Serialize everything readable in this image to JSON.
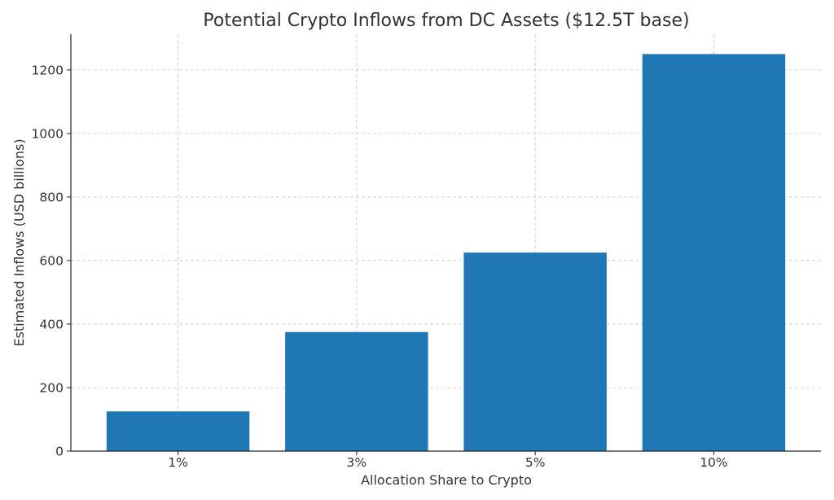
{
  "chart_data": {
    "type": "bar",
    "title": "Potential Crypto Inflows from DC Assets ($12.5T base)",
    "xlabel": "Allocation Share to Crypto",
    "ylabel": "Estimated Inflows (USD billions)",
    "categories": [
      "1%",
      "3%",
      "5%",
      "10%"
    ],
    "values": [
      125,
      375,
      625,
      1250
    ],
    "ylim": [
      0,
      1312.5
    ],
    "yticks": [
      0,
      200,
      400,
      600,
      800,
      1000,
      1200
    ],
    "grid": true,
    "bar_color": "#1f77b4"
  }
}
